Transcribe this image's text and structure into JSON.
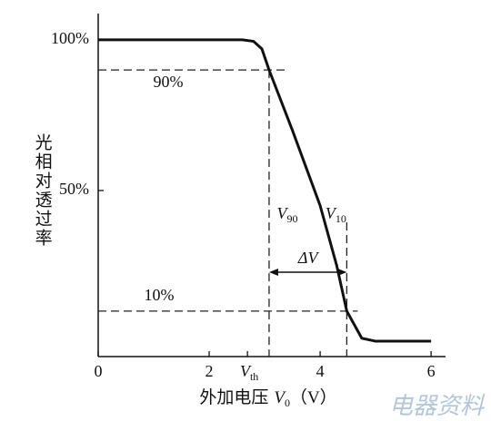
{
  "chart_data": {
    "type": "line",
    "x": [
      0,
      2.6,
      2.8,
      2.95,
      3.08,
      3.5,
      4.0,
      4.3,
      4.48,
      4.6,
      4.75,
      5.0,
      6.0
    ],
    "series": [
      {
        "color": "#111111",
        "values": [
          100,
          100,
          99.5,
          97,
          90,
          70,
          45,
          25,
          10,
          6,
          1,
          0,
          0
        ]
      }
    ],
    "xlim": [
      0,
      6.26
    ],
    "ylim": [
      -5.1,
      108.7
    ],
    "xticks": [
      0,
      2,
      4,
      6
    ],
    "yticks": [
      {
        "value": 100,
        "label": "100%"
      },
      {
        "value": 50,
        "label": "50%"
      }
    ],
    "ylabel": "光相对透过率",
    "xlabel": {
      "text": "外加电压",
      "var": "V",
      "sub": "0",
      "unit": "（V）"
    },
    "levels": [
      {
        "value": 90,
        "label": "90%"
      },
      {
        "value": 10,
        "label": "10%"
      }
    ],
    "voltages": [
      {
        "value": 2.69,
        "label": {
          "main": "V",
          "sub": "th"
        }
      },
      {
        "value": 3.08,
        "label": {
          "main": "V",
          "sub": "90"
        }
      },
      {
        "value": 4.48,
        "label": {
          "main": "V",
          "sub": "10"
        }
      }
    ],
    "delta_label": "ΔV",
    "watermark": "电器资料"
  }
}
